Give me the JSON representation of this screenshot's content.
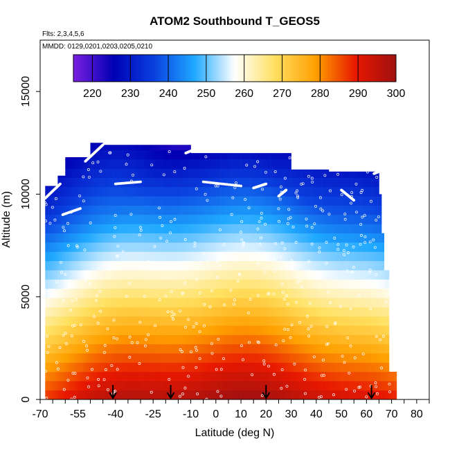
{
  "chart_data": {
    "type": "heatmap",
    "title": "ATOM2 Southbound T_GEOS5",
    "subtitle_flights": "Flts: 2,3,4,5,6",
    "subtitle_dates": "MMDD: 0129,0201,0203,0205,0210",
    "xlabel": "Latitude (deg N)",
    "ylabel": "Altitude (m)",
    "xlim": [
      -70,
      85
    ],
    "ylim": [
      0,
      17500
    ],
    "x_tick_labels": [
      "-70",
      "-55",
      "-40",
      "-25",
      "-10",
      "0",
      "10",
      "20",
      "30",
      "40",
      "50",
      "60",
      "70",
      "80"
    ],
    "x_tick_values": [
      -70,
      -55,
      -40,
      -25,
      -10,
      0,
      10,
      20,
      30,
      40,
      50,
      60,
      70,
      80
    ],
    "y_tick_labels": [
      "0",
      "5000",
      "10000",
      "15000"
    ],
    "y_tick_values": [
      0,
      5000,
      10000,
      15000
    ],
    "colorbar": {
      "min": 215,
      "max": 300,
      "tick_labels": [
        "220",
        "230",
        "240",
        "250",
        "260",
        "270",
        "280",
        "290",
        "300"
      ],
      "tick_values": [
        220,
        230,
        240,
        250,
        260,
        270,
        280,
        290,
        300
      ],
      "colors": [
        "#7b1fe0",
        "#0000b4",
        "#0a40e0",
        "#1ea8ff",
        "#ffffff",
        "#ffe060",
        "#ffa000",
        "#e81800",
        "#a01010"
      ]
    },
    "profile_markers_lat": [
      -41,
      -18,
      20,
      62
    ],
    "grid": false
  }
}
